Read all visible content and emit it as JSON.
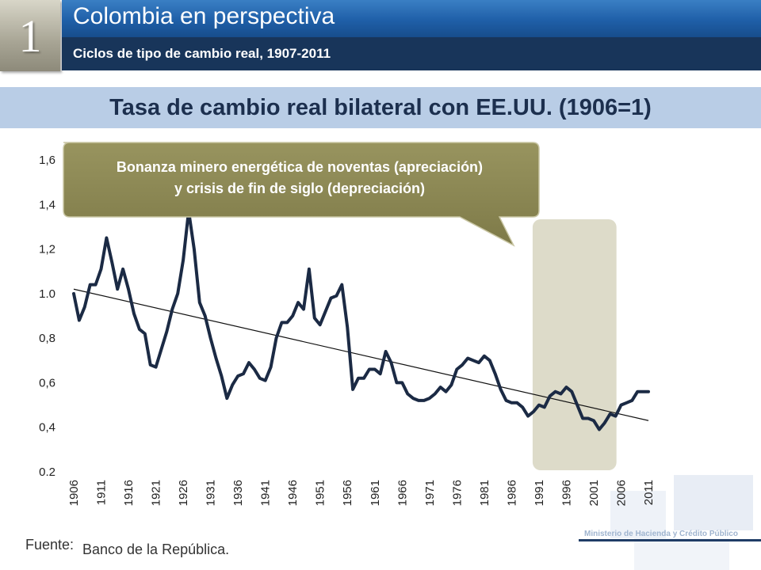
{
  "header": {
    "slide_number": "1",
    "title": "Colombia en perspectiva",
    "subtitle": "Ciclos de tipo de cambio real, 1907-2011"
  },
  "chart_title": "Tasa de cambio real bilateral con EE.UU. (1906=1)",
  "callout": {
    "line1": "Bonanza minero energética de noventas (apreciación)",
    "line2": "y crisis de fin de siglo (depreciación)"
  },
  "footer": {
    "source_label": "Fuente:",
    "source_text": "Banco de la República.",
    "ministry": "Ministerio de Hacienda y Crédito Público"
  },
  "colors": {
    "series": "#1b2a44",
    "trend": "#111111",
    "highlight": "#dddbc9",
    "callout": "#8a8652",
    "title_bar": "#2a6fb8",
    "subtitle_bar": "#18355a"
  },
  "chart_data": {
    "type": "line",
    "title": "Tasa de cambio real bilateral con EE.UU. (1906=1)",
    "xlabel": "",
    "ylabel": "",
    "ylim": [
      0.2,
      1.6
    ],
    "yticks": [
      "1,6",
      "1,4",
      "1,2",
      "1.0",
      "0,8",
      "0,6",
      "0,4",
      "0.2"
    ],
    "ytick_values": [
      1.6,
      1.4,
      1.2,
      1.0,
      0.8,
      0.6,
      0.4,
      0.2
    ],
    "xticks": [
      "1906",
      "1911",
      "1916",
      "1921",
      "1926",
      "1931",
      "1936",
      "1941",
      "1946",
      "1951",
      "1956",
      "1961",
      "1966",
      "1971",
      "1976",
      "1981",
      "1986",
      "1991",
      "1996",
      "2001",
      "2006",
      "2011"
    ],
    "xlim": [
      1906,
      2011
    ],
    "grid": false,
    "x": [
      1906,
      1907,
      1908,
      1909,
      1910,
      1911,
      1912,
      1913,
      1914,
      1915,
      1916,
      1917,
      1918,
      1919,
      1920,
      1921,
      1922,
      1923,
      1924,
      1925,
      1926,
      1927,
      1928,
      1929,
      1930,
      1931,
      1932,
      1933,
      1934,
      1935,
      1936,
      1937,
      1938,
      1939,
      1940,
      1941,
      1942,
      1943,
      1944,
      1945,
      1946,
      1947,
      1948,
      1949,
      1950,
      1951,
      1952,
      1953,
      1954,
      1955,
      1956,
      1957,
      1958,
      1959,
      1960,
      1961,
      1962,
      1963,
      1964,
      1965,
      1966,
      1967,
      1968,
      1969,
      1970,
      1971,
      1972,
      1973,
      1974,
      1975,
      1976,
      1977,
      1978,
      1979,
      1980,
      1981,
      1982,
      1983,
      1984,
      1985,
      1986,
      1987,
      1988,
      1989,
      1990,
      1991,
      1992,
      1993,
      1994,
      1995,
      1996,
      1997,
      1998,
      1999,
      2000,
      2001,
      2002,
      2003,
      2004,
      2005,
      2006,
      2007,
      2008,
      2009,
      2010,
      2011
    ],
    "series": [
      {
        "values": [
          1.0,
          0.88,
          0.94,
          1.04,
          1.04,
          1.11,
          1.25,
          1.14,
          1.02,
          1.11,
          1.02,
          0.91,
          0.84,
          0.82,
          0.68,
          0.67,
          0.75,
          0.83,
          0.93,
          1.0,
          1.15,
          1.37,
          1.2,
          0.96,
          0.9,
          0.8,
          0.71,
          0.63,
          0.53,
          0.59,
          0.63,
          0.64,
          0.69,
          0.66,
          0.62,
          0.61,
          0.67,
          0.8,
          0.87,
          0.87,
          0.9,
          0.96,
          0.93,
          1.11,
          0.89,
          0.86,
          0.92,
          0.98,
          0.99,
          1.04,
          0.85,
          0.57,
          0.62,
          0.62,
          0.66,
          0.66,
          0.64,
          0.74,
          0.69,
          0.6,
          0.6,
          0.55,
          0.53,
          0.52,
          0.52,
          0.53,
          0.55,
          0.58,
          0.56,
          0.59,
          0.66,
          0.68,
          0.71,
          0.7,
          0.69,
          0.72,
          0.7,
          0.64,
          0.57,
          0.52,
          0.51,
          0.51,
          0.49,
          0.45,
          0.47,
          0.5,
          0.49,
          0.54,
          0.56,
          0.55,
          0.58,
          0.56,
          0.5,
          0.44,
          0.44,
          0.43,
          0.39,
          0.42,
          0.46,
          0.45,
          0.5,
          0.51,
          0.52,
          0.56,
          0.56,
          0.56
        ]
      }
    ],
    "trend": {
      "x": [
        1906,
        2011
      ],
      "y": [
        1.02,
        0.43
      ]
    },
    "highlight_range": [
      1991,
      2004
    ]
  }
}
